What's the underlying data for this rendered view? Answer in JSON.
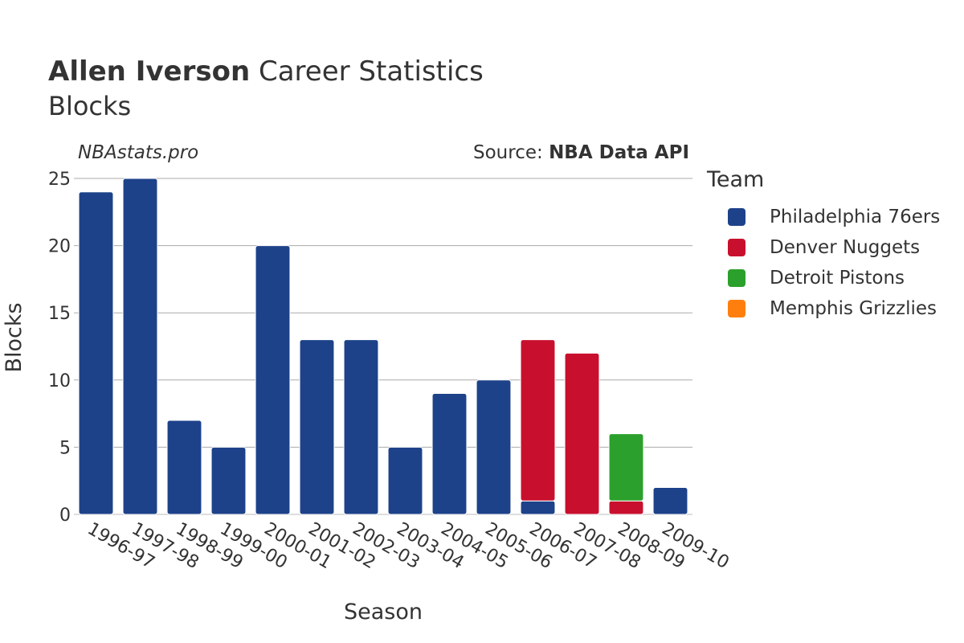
{
  "header": {
    "title_bold": "Allen Iverson",
    "title_rest": "Career Statistics",
    "subtitle": "Blocks",
    "credit": "NBAstats.pro",
    "source_prefix": "Source: ",
    "source_name": "NBA Data API"
  },
  "legend": {
    "title": "Team",
    "items": [
      {
        "label": "Philadelphia 76ers",
        "color": "#1d428a"
      },
      {
        "label": "Denver Nuggets",
        "color": "#c8102e"
      },
      {
        "label": "Detroit Pistons",
        "color": "#2ca02c"
      },
      {
        "label": "Memphis Grizzlies",
        "color": "#ff7f0e"
      }
    ]
  },
  "chart_data": {
    "type": "bar",
    "stacked": true,
    "title": "Allen Iverson Career Statistics",
    "subtitle": "Blocks",
    "xlabel": "Season",
    "ylabel": "Blocks",
    "ylim": [
      0,
      25
    ],
    "yticks": [
      0,
      5,
      10,
      15,
      20,
      25
    ],
    "categories": [
      "1996-97",
      "1997-98",
      "1998-99",
      "1999-00",
      "2000-01",
      "2001-02",
      "2002-03",
      "2003-04",
      "2004-05",
      "2005-06",
      "2006-07",
      "2007-08",
      "2008-09",
      "2009-10"
    ],
    "series": [
      {
        "name": "Philadelphia 76ers",
        "color": "#1d428a",
        "values": [
          24,
          25,
          7,
          5,
          20,
          13,
          13,
          5,
          9,
          10,
          1,
          0,
          0,
          2
        ]
      },
      {
        "name": "Denver Nuggets",
        "color": "#c8102e",
        "values": [
          0,
          0,
          0,
          0,
          0,
          0,
          0,
          0,
          0,
          0,
          12,
          12,
          1,
          0
        ]
      },
      {
        "name": "Detroit Pistons",
        "color": "#2ca02c",
        "values": [
          0,
          0,
          0,
          0,
          0,
          0,
          0,
          0,
          0,
          0,
          0,
          0,
          5,
          0
        ]
      },
      {
        "name": "Memphis Grizzlies",
        "color": "#ff7f0e",
        "values": [
          0,
          0,
          0,
          0,
          0,
          0,
          0,
          0,
          0,
          0,
          0,
          0,
          0,
          0
        ]
      }
    ],
    "legend_position": "right"
  }
}
